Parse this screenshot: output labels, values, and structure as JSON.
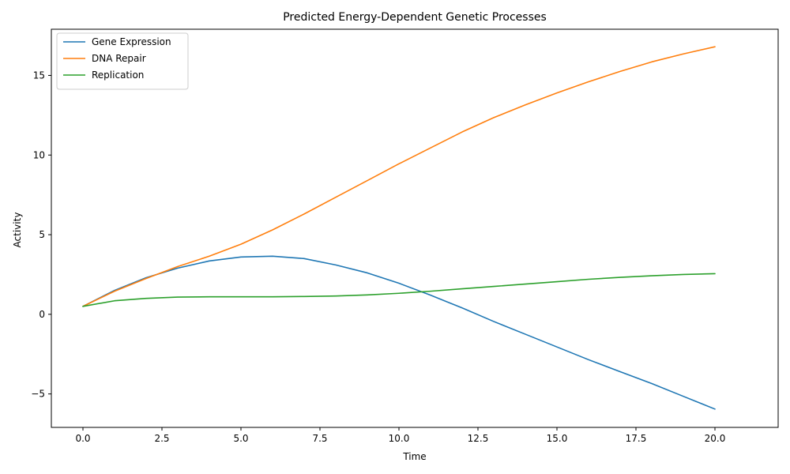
{
  "chart_data": {
    "type": "line",
    "title": "Predicted Energy-Dependent Genetic Processes",
    "xlabel": "Time",
    "ylabel": "Activity",
    "xlim": [
      -1,
      22
    ],
    "ylim": [
      -7.1,
      17.9
    ],
    "x_ticks": [
      0.0,
      2.5,
      5.0,
      7.5,
      10.0,
      12.5,
      15.0,
      17.5,
      20.0
    ],
    "x_tick_labels": [
      "0.0",
      "2.5",
      "5.0",
      "7.5",
      "10.0",
      "12.5",
      "15.0",
      "17.5",
      "20.0"
    ],
    "y_ticks": [
      -5,
      0,
      5,
      10,
      15
    ],
    "y_tick_labels": [
      "−5",
      "0",
      "5",
      "10",
      "15"
    ],
    "grid": false,
    "legend_position": "upper left",
    "x": [
      0,
      1,
      2,
      3,
      4,
      5,
      6,
      7,
      8,
      9,
      10,
      11,
      12,
      13,
      14,
      15,
      16,
      17,
      18,
      19,
      20
    ],
    "series": [
      {
        "name": "Gene Expression",
        "color": "#1f77b4",
        "values": [
          0.5,
          1.5,
          2.3,
          2.9,
          3.35,
          3.6,
          3.65,
          3.5,
          3.1,
          2.6,
          1.95,
          1.2,
          0.4,
          -0.45,
          -1.25,
          -2.05,
          -2.85,
          -3.6,
          -4.35,
          -5.15,
          -5.95
        ]
      },
      {
        "name": "DNA Repair",
        "color": "#ff7f0e",
        "values": [
          0.5,
          1.45,
          2.25,
          3.0,
          3.65,
          4.4,
          5.3,
          6.3,
          7.35,
          8.4,
          9.45,
          10.45,
          11.45,
          12.35,
          13.15,
          13.9,
          14.6,
          15.25,
          15.85,
          16.35,
          16.8
        ]
      },
      {
        "name": "Replication",
        "color": "#2ca02c",
        "values": [
          0.5,
          0.85,
          1.0,
          1.08,
          1.1,
          1.1,
          1.1,
          1.12,
          1.15,
          1.22,
          1.32,
          1.45,
          1.6,
          1.75,
          1.9,
          2.05,
          2.2,
          2.32,
          2.42,
          2.5,
          2.55
        ]
      }
    ]
  }
}
